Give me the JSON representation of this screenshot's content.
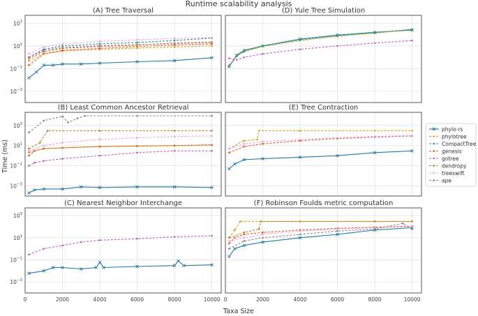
{
  "suptitle": "Runtime scalability analysis",
  "xlabel": "Taxa Size",
  "ylabel": "Time (ms)",
  "legend": [
    {
      "name": "phylo-rs",
      "color": "#1f77a4",
      "marker": "x",
      "dash": ""
    },
    {
      "name": "phylotree",
      "color": "#d4a017",
      "marker": "o",
      "dash": "3,2"
    },
    {
      "name": "CompactTree",
      "color": "#1f9e77",
      "marker": "o",
      "dash": "3,2"
    },
    {
      "name": "genesis",
      "color": "#e05a20",
      "marker": "o",
      "dash": "3,2"
    },
    {
      "name": "gotree",
      "color": "#c060c0",
      "marker": "o",
      "dash": "3,2"
    },
    {
      "name": "dendropy",
      "color": "#c08030",
      "marker": "o",
      "dash": "3,2"
    },
    {
      "name": "treeswift",
      "color": "#f0a0e0",
      "marker": "o",
      "dash": "3,2"
    },
    {
      "name": "ape",
      "color": "#888888",
      "marker": "o",
      "dash": "3,2"
    }
  ],
  "chart_data": [
    {
      "id": "A",
      "type": "line",
      "title": "(A) Tree Traversal",
      "xlim": [
        0,
        10500
      ],
      "ylim": [
        0.0001,
        5000
      ],
      "yscale": "log",
      "x_ticks": [],
      "y_ticks": [
        "10^3",
        "10^1",
        "10^-1",
        "10^-3"
      ],
      "series": [
        {
          "name": "phylo-rs",
          "x": [
            200,
            600,
            1000,
            1500,
            2000,
            3000,
            4000,
            6000,
            8000,
            10000
          ],
          "values": [
            0.015,
            0.05,
            0.2,
            0.2,
            0.25,
            0.25,
            0.3,
            0.4,
            0.5,
            0.9
          ]
        },
        {
          "name": "phylotree",
          "x": [
            200,
            1000,
            2000,
            4000,
            6000,
            8000,
            10000
          ],
          "values": [
            0.5,
            2,
            3.5,
            5,
            6.5,
            8,
            10
          ]
        },
        {
          "name": "CompactTree",
          "x": [
            200,
            1000,
            2000,
            4000,
            6000,
            8000,
            10000
          ],
          "values": [
            1,
            5,
            10,
            15,
            20,
            30,
            50
          ]
        },
        {
          "name": "genesis",
          "x": [
            200,
            1000,
            2000,
            4000,
            6000,
            8000,
            10000
          ],
          "values": [
            0.2,
            2,
            4,
            6,
            9,
            12,
            15
          ]
        },
        {
          "name": "gotree",
          "x": [
            200,
            1000,
            2000,
            4000,
            6000,
            8000,
            10000
          ],
          "values": [
            1,
            4,
            7,
            10,
            13,
            16,
            20
          ]
        },
        {
          "name": "dendropy",
          "x": [
            200,
            1000,
            2000,
            4000,
            6000,
            8000,
            10000
          ],
          "values": [
            0.8,
            3,
            6,
            9,
            12,
            18,
            22
          ]
        },
        {
          "name": "treeswift",
          "x": [
            200,
            1000,
            2000,
            4000,
            6000,
            8000,
            10000
          ],
          "values": [
            2,
            8,
            15,
            25,
            35,
            45,
            55
          ]
        }
      ]
    },
    {
      "id": "D",
      "type": "line",
      "title": "(D) Yule Tree Simulation",
      "xlim": [
        0,
        10500
      ],
      "ylim": [
        0.0001,
        5000
      ],
      "yscale": "log",
      "x_ticks": [],
      "y_ticks": [],
      "series": [
        {
          "name": "phylo-rs",
          "x": [
            200,
            600,
            1000,
            2000,
            4000,
            6000,
            8000,
            10000
          ],
          "values": [
            0.15,
            1.5,
            4,
            10,
            40,
            90,
            160,
            250
          ]
        },
        {
          "name": "phylotree",
          "x": [
            200,
            600,
            1000,
            2000,
            4000,
            6000,
            8000,
            10000
          ],
          "values": [
            0.2,
            1.2,
            3,
            9,
            30,
            70,
            130,
            300
          ]
        },
        {
          "name": "CompactTree",
          "x": [
            200,
            600,
            1000,
            2000,
            4000,
            6000,
            8000,
            10000
          ],
          "values": [
            0.15,
            1.3,
            3.5,
            10,
            35,
            80,
            150,
            280
          ]
        },
        {
          "name": "gotree",
          "x": [
            200,
            600,
            1000,
            2000,
            4000,
            6000,
            8000,
            10000
          ],
          "values": [
            0.8,
            0.6,
            1,
            2,
            5,
            10,
            18,
            30
          ]
        }
      ]
    },
    {
      "id": "B",
      "type": "line",
      "title": "(B) Least Common Ancestor Retrieval",
      "xlim": [
        0,
        10500
      ],
      "ylim": [
        0.0001,
        20000
      ],
      "yscale": "log",
      "x_ticks": [],
      "y_ticks": [
        "10^3",
        "10^1",
        "10^-1",
        "10^-3"
      ],
      "series": [
        {
          "name": "phylo-rs",
          "x": [
            200,
            500,
            1000,
            2000,
            3000,
            4000,
            6000,
            8000,
            10000
          ],
          "values": [
            0.0002,
            0.0004,
            0.0005,
            0.0005,
            0.0008,
            0.0007,
            0.0008,
            0.0008,
            0.0007
          ]
        },
        {
          "name": "phylotree",
          "x": [
            200,
            500,
            1000,
            2000,
            4000,
            6000,
            8000,
            10000
          ],
          "values": [
            2,
            3,
            5,
            6,
            8,
            9,
            10,
            11
          ]
        },
        {
          "name": "genesis",
          "x": [
            200,
            500,
            1000,
            2000,
            4000,
            6000,
            8000,
            10000
          ],
          "values": [
            1,
            3,
            5,
            6,
            8,
            9,
            10,
            12
          ]
        },
        {
          "name": "gotree",
          "x": [
            200,
            500,
            1000,
            2000,
            4000,
            6000,
            8000,
            10000
          ],
          "values": [
            0.1,
            0.2,
            0.3,
            0.5,
            1,
            2,
            3,
            3
          ]
        },
        {
          "name": "dendropy",
          "x": [
            200,
            800,
            1200,
            4000,
            8000,
            10000
          ],
          "values": [
            5,
            20,
            300,
            300,
            300,
            300
          ]
        },
        {
          "name": "treeswift",
          "x": [
            200,
            1000,
            2000,
            4000,
            6000,
            8000,
            10000
          ],
          "values": [
            3,
            10,
            20,
            40,
            60,
            80,
            90
          ]
        },
        {
          "name": "ape",
          "x": [
            200,
            1000,
            2000,
            2300,
            2800,
            3200,
            6000,
            10000
          ],
          "values": [
            200,
            3000,
            8000,
            2000,
            5000,
            9000,
            9000,
            9000
          ]
        }
      ]
    },
    {
      "id": "E",
      "type": "line",
      "title": "(E) Tree Contraction",
      "xlim": [
        0,
        10500
      ],
      "ylim": [
        0.0001,
        20000
      ],
      "yscale": "log",
      "x_ticks": [],
      "y_ticks": [],
      "series": [
        {
          "name": "phylo-rs",
          "x": [
            200,
            500,
            1000,
            2000,
            4000,
            6000,
            8000,
            10000
          ],
          "values": [
            0.05,
            0.15,
            0.4,
            0.5,
            0.7,
            1,
            2,
            3
          ]
        },
        {
          "name": "phylotree",
          "x": [
            200,
            1000,
            1700,
            1800,
            4000,
            8000,
            10000
          ],
          "values": [
            5,
            30,
            40,
            300,
            300,
            300,
            300
          ]
        },
        {
          "name": "genesis",
          "x": [
            200,
            1000,
            2000,
            4000,
            6000,
            8000,
            10000
          ],
          "values": [
            2,
            8,
            15,
            30,
            50,
            70,
            90
          ]
        },
        {
          "name": "treeswift",
          "x": [
            200,
            1000,
            2000,
            4000,
            6000,
            8000,
            10000
          ],
          "values": [
            5,
            15,
            25,
            40,
            60,
            80,
            100
          ]
        }
      ]
    },
    {
      "id": "C",
      "type": "line",
      "title": "(C) Nearest Neighbor Interchange",
      "xlim": [
        0,
        10500
      ],
      "ylim": [
        0.0001,
        5000
      ],
      "yscale": "log",
      "x_ticks": [
        "0",
        "2000",
        "4000",
        "6000",
        "8000",
        "10000"
      ],
      "y_ticks": [
        "10^3",
        "10^1",
        "10^-1",
        "10^-3"
      ],
      "series": [
        {
          "name": "phylo-rs",
          "x": [
            200,
            1000,
            1500,
            2000,
            3000,
            3800,
            4000,
            4200,
            6000,
            8000,
            8200,
            8500,
            10000
          ],
          "values": [
            0.006,
            0.01,
            0.02,
            0.02,
            0.015,
            0.02,
            0.06,
            0.02,
            0.025,
            0.03,
            0.08,
            0.03,
            0.035
          ]
        },
        {
          "name": "gotree",
          "x": [
            200,
            1000,
            2000,
            3000,
            4000,
            6000,
            8000,
            10000
          ],
          "values": [
            0.3,
            1,
            2,
            4,
            6,
            8,
            12,
            15
          ]
        }
      ]
    },
    {
      "id": "F",
      "type": "line",
      "title": "(F) Robinson Foulds metric computation",
      "xlim": [
        0,
        10500
      ],
      "ylim": [
        0.0001,
        5000
      ],
      "yscale": "log",
      "x_ticks": [
        "0",
        "2000",
        "4000",
        "6000",
        "8000",
        "10000"
      ],
      "y_ticks": [],
      "series": [
        {
          "name": "phylo-rs",
          "x": [
            200,
            500,
            1000,
            2000,
            4000,
            6000,
            8000,
            10000
          ],
          "values": [
            0.2,
            1,
            2,
            4,
            10,
            20,
            50,
            80
          ]
        },
        {
          "name": "phylotree",
          "x": [
            200,
            500,
            800,
            4000,
            8000,
            10000
          ],
          "values": [
            10,
            50,
            300,
            300,
            300,
            300
          ]
        },
        {
          "name": "genesis",
          "x": [
            200,
            500,
            1000,
            2000,
            4000,
            6000,
            8000,
            10000
          ],
          "values": [
            3,
            10,
            20,
            30,
            50,
            70,
            90,
            110
          ]
        },
        {
          "name": "dendropy",
          "x": [
            200,
            1000,
            1800,
            1900,
            8000,
            10000
          ],
          "values": [
            10,
            30,
            60,
            300,
            300,
            300
          ]
        },
        {
          "name": "treeswift",
          "x": [
            200,
            1000,
            2000,
            4000,
            6000,
            8000,
            10000
          ],
          "values": [
            5,
            10,
            20,
            40,
            60,
            80,
            100
          ]
        },
        {
          "name": "ape",
          "x": [
            200,
            1000,
            2000,
            4000,
            6000,
            8000,
            9500,
            10000
          ],
          "values": [
            1,
            5,
            10,
            20,
            40,
            60,
            200,
            60
          ]
        }
      ]
    }
  ]
}
